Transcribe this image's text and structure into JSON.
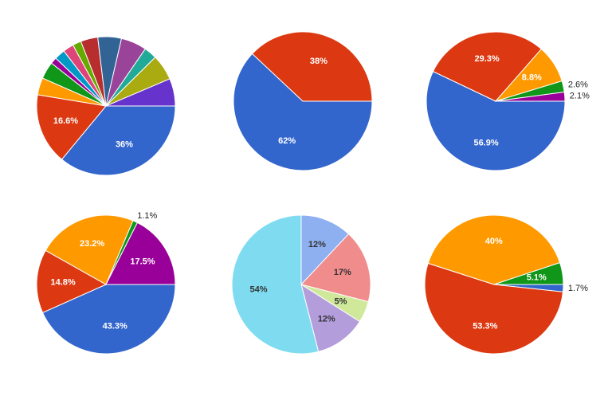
{
  "chart_data": [
    {
      "type": "pie",
      "values": [
        36,
        16.6,
        4,
        4,
        1.5,
        2.5,
        2.5,
        2,
        4,
        5.5,
        6,
        3,
        6,
        6.4
      ],
      "value_labels": [
        "36%",
        "16.6%",
        null,
        null,
        null,
        null,
        null,
        null,
        null,
        null,
        null,
        null,
        null,
        null
      ],
      "colors": [
        "#3366cc",
        "#dc3912",
        "#ff9900",
        "#109618",
        "#990099",
        "#0099c6",
        "#dd4477",
        "#66aa00",
        "#b82e2e",
        "#316395",
        "#994499",
        "#22aa99",
        "#aaaa11",
        "#6633cc"
      ],
      "label_color": "#ffffff"
    },
    {
      "type": "pie",
      "values": [
        62,
        38
      ],
      "value_labels": [
        "62%",
        "38%"
      ],
      "colors": [
        "#3366cc",
        "#dc3912"
      ],
      "label_color": "#ffffff"
    },
    {
      "type": "pie",
      "values": [
        56.9,
        29.3,
        8.8,
        2.6,
        2.1
      ],
      "value_labels": [
        "56.9%",
        "29.3%",
        "8.8%",
        "2.6%",
        "2.1%"
      ],
      "colors": [
        "#3366cc",
        "#dc3912",
        "#ff9900",
        "#109618",
        "#990099"
      ],
      "label_color": "#ffffff"
    },
    {
      "type": "pie",
      "values": [
        43.3,
        14.8,
        23.2,
        1.1,
        17.5
      ],
      "value_labels": [
        "43.3%",
        "14.8%",
        "23.2%",
        "1.1%",
        "17.5%"
      ],
      "colors": [
        "#3366cc",
        "#dc3912",
        "#ff9900",
        "#109618",
        "#990099"
      ],
      "label_color": "#ffffff"
    },
    {
      "type": "pie",
      "values": [
        12,
        17,
        5,
        12,
        54
      ],
      "value_labels": [
        "12%",
        "17%",
        "5%",
        "12%",
        "54%"
      ],
      "colors": [
        "#8fb0f0",
        "#f08c8c",
        "#cfe89a",
        "#b39ddb",
        "#7fdcf0"
      ],
      "label_color": "#333333"
    },
    {
      "type": "pie",
      "values": [
        1.7,
        53.3,
        40,
        5.1
      ],
      "value_labels": [
        "1.7%",
        "53.3%",
        "40%",
        "5.1%"
      ],
      "colors": [
        "#3366cc",
        "#dc3912",
        "#ff9900",
        "#109618"
      ],
      "label_color": "#ffffff"
    }
  ]
}
